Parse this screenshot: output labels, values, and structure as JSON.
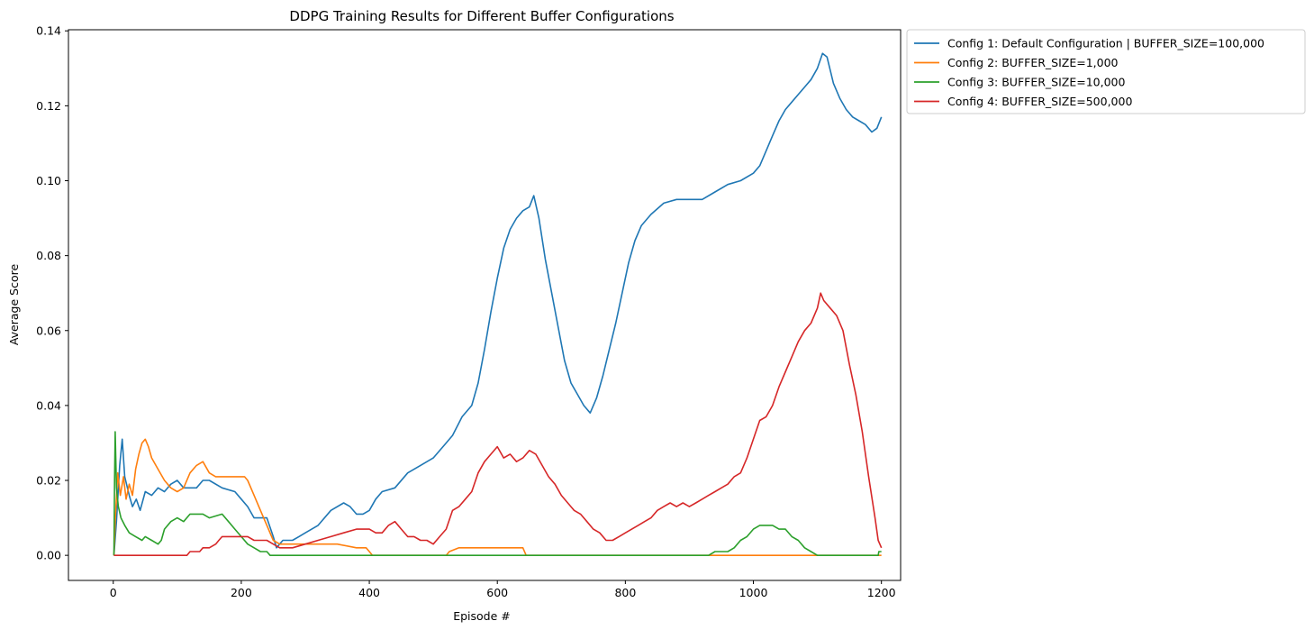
{
  "chart_data": {
    "type": "line",
    "title": "DDPG Training Results for Different Buffer Configurations",
    "xlabel": "Episode #",
    "ylabel": "Average Score",
    "xlim": [
      -70,
      1230
    ],
    "ylim": [
      -0.0067,
      0.1403
    ],
    "xticks": [
      0,
      200,
      400,
      600,
      800,
      1000,
      1200
    ],
    "xtick_labels": [
      "0",
      "200",
      "400",
      "600",
      "800",
      "1000",
      "1200"
    ],
    "yticks": [
      0.0,
      0.02,
      0.04,
      0.06,
      0.08,
      0.1,
      0.12,
      0.14
    ],
    "ytick_labels": [
      "0.00",
      "0.02",
      "0.04",
      "0.06",
      "0.08",
      "0.10",
      "0.12",
      "0.14"
    ],
    "grid": false,
    "legend_position": "outside-top-right",
    "series": [
      {
        "name": "Config 1: Default Configuration | BUFFER_SIZE=100,000",
        "color": "#1f77b4",
        "points": [
          [
            1,
            0
          ],
          [
            5,
            0.009
          ],
          [
            10,
            0.024
          ],
          [
            14,
            0.031
          ],
          [
            18,
            0.021
          ],
          [
            25,
            0.016
          ],
          [
            30,
            0.013
          ],
          [
            36,
            0.015
          ],
          [
            42,
            0.012
          ],
          [
            50,
            0.017
          ],
          [
            60,
            0.016
          ],
          [
            70,
            0.018
          ],
          [
            80,
            0.017
          ],
          [
            90,
            0.019
          ],
          [
            100,
            0.02
          ],
          [
            110,
            0.018
          ],
          [
            130,
            0.018
          ],
          [
            140,
            0.02
          ],
          [
            150,
            0.02
          ],
          [
            170,
            0.018
          ],
          [
            190,
            0.017
          ],
          [
            200,
            0.015
          ],
          [
            210,
            0.013
          ],
          [
            220,
            0.01
          ],
          [
            240,
            0.01
          ],
          [
            250,
            0.005
          ],
          [
            255,
            0.002
          ],
          [
            265,
            0.004
          ],
          [
            280,
            0.004
          ],
          [
            290,
            0.005
          ],
          [
            300,
            0.006
          ],
          [
            320,
            0.008
          ],
          [
            340,
            0.012
          ],
          [
            360,
            0.014
          ],
          [
            370,
            0.013
          ],
          [
            380,
            0.011
          ],
          [
            390,
            0.011
          ],
          [
            400,
            0.012
          ],
          [
            410,
            0.015
          ],
          [
            420,
            0.017
          ],
          [
            440,
            0.018
          ],
          [
            460,
            0.022
          ],
          [
            480,
            0.024
          ],
          [
            500,
            0.026
          ],
          [
            520,
            0.03
          ],
          [
            530,
            0.032
          ],
          [
            545,
            0.037
          ],
          [
            560,
            0.04
          ],
          [
            570,
            0.046
          ],
          [
            580,
            0.055
          ],
          [
            590,
            0.065
          ],
          [
            600,
            0.074
          ],
          [
            610,
            0.082
          ],
          [
            620,
            0.087
          ],
          [
            630,
            0.09
          ],
          [
            640,
            0.092
          ],
          [
            650,
            0.093
          ],
          [
            657,
            0.096
          ],
          [
            665,
            0.09
          ],
          [
            675,
            0.079
          ],
          [
            685,
            0.07
          ],
          [
            695,
            0.061
          ],
          [
            705,
            0.052
          ],
          [
            715,
            0.046
          ],
          [
            725,
            0.043
          ],
          [
            735,
            0.04
          ],
          [
            745,
            0.038
          ],
          [
            755,
            0.042
          ],
          [
            765,
            0.048
          ],
          [
            775,
            0.055
          ],
          [
            785,
            0.062
          ],
          [
            795,
            0.07
          ],
          [
            805,
            0.078
          ],
          [
            815,
            0.084
          ],
          [
            825,
            0.088
          ],
          [
            840,
            0.091
          ],
          [
            860,
            0.094
          ],
          [
            880,
            0.095
          ],
          [
            900,
            0.095
          ],
          [
            920,
            0.095
          ],
          [
            940,
            0.097
          ],
          [
            960,
            0.099
          ],
          [
            980,
            0.1
          ],
          [
            1000,
            0.102
          ],
          [
            1010,
            0.104
          ],
          [
            1020,
            0.108
          ],
          [
            1030,
            0.112
          ],
          [
            1040,
            0.116
          ],
          [
            1050,
            0.119
          ],
          [
            1060,
            0.121
          ],
          [
            1070,
            0.123
          ],
          [
            1080,
            0.125
          ],
          [
            1090,
            0.127
          ],
          [
            1100,
            0.13
          ],
          [
            1108,
            0.134
          ],
          [
            1115,
            0.133
          ],
          [
            1125,
            0.126
          ],
          [
            1135,
            0.122
          ],
          [
            1145,
            0.119
          ],
          [
            1155,
            0.117
          ],
          [
            1165,
            0.116
          ],
          [
            1175,
            0.115
          ],
          [
            1185,
            0.113
          ],
          [
            1193,
            0.114
          ],
          [
            1200,
            0.117
          ]
        ]
      },
      {
        "name": "Config 2: BUFFER_SIZE=1,000",
        "color": "#ff7f0e",
        "points": [
          [
            1,
            0
          ],
          [
            3,
            0.009
          ],
          [
            7,
            0.022
          ],
          [
            11,
            0.016
          ],
          [
            16,
            0.021
          ],
          [
            20,
            0.015
          ],
          [
            25,
            0.019
          ],
          [
            30,
            0.016
          ],
          [
            35,
            0.023
          ],
          [
            40,
            0.027
          ],
          [
            45,
            0.03
          ],
          [
            50,
            0.031
          ],
          [
            55,
            0.029
          ],
          [
            60,
            0.026
          ],
          [
            70,
            0.023
          ],
          [
            80,
            0.02
          ],
          [
            90,
            0.018
          ],
          [
            100,
            0.017
          ],
          [
            110,
            0.018
          ],
          [
            120,
            0.022
          ],
          [
            130,
            0.024
          ],
          [
            140,
            0.025
          ],
          [
            150,
            0.022
          ],
          [
            160,
            0.021
          ],
          [
            170,
            0.021
          ],
          [
            180,
            0.021
          ],
          [
            190,
            0.021
          ],
          [
            200,
            0.021
          ],
          [
            205,
            0.021
          ],
          [
            210,
            0.02
          ],
          [
            220,
            0.016
          ],
          [
            230,
            0.012
          ],
          [
            240,
            0.008
          ],
          [
            250,
            0.004
          ],
          [
            260,
            0.003
          ],
          [
            300,
            0.003
          ],
          [
            350,
            0.003
          ],
          [
            380,
            0.002
          ],
          [
            395,
            0.002
          ],
          [
            400,
            0.001
          ],
          [
            405,
            0
          ],
          [
            520,
            0
          ],
          [
            525,
            0.001
          ],
          [
            540,
            0.002
          ],
          [
            640,
            0.002
          ],
          [
            645,
            0
          ],
          [
            1200,
            0
          ]
        ]
      },
      {
        "name": "Config 3: BUFFER_SIZE=10,000",
        "color": "#2ca02c",
        "points": [
          [
            1,
            0
          ],
          [
            2,
            0.02
          ],
          [
            3,
            0.033
          ],
          [
            5,
            0.018
          ],
          [
            8,
            0.013
          ],
          [
            12,
            0.01
          ],
          [
            18,
            0.008
          ],
          [
            25,
            0.006
          ],
          [
            35,
            0.005
          ],
          [
            45,
            0.004
          ],
          [
            50,
            0.005
          ],
          [
            60,
            0.004
          ],
          [
            70,
            0.003
          ],
          [
            75,
            0.004
          ],
          [
            80,
            0.007
          ],
          [
            90,
            0.009
          ],
          [
            100,
            0.01
          ],
          [
            110,
            0.009
          ],
          [
            120,
            0.011
          ],
          [
            140,
            0.011
          ],
          [
            150,
            0.01
          ],
          [
            170,
            0.011
          ],
          [
            180,
            0.009
          ],
          [
            190,
            0.007
          ],
          [
            200,
            0.005
          ],
          [
            210,
            0.003
          ],
          [
            220,
            0.002
          ],
          [
            230,
            0.001
          ],
          [
            240,
            0.001
          ],
          [
            245,
            0
          ],
          [
            930,
            0
          ],
          [
            940,
            0.001
          ],
          [
            960,
            0.001
          ],
          [
            970,
            0.002
          ],
          [
            980,
            0.004
          ],
          [
            990,
            0.005
          ],
          [
            1000,
            0.007
          ],
          [
            1010,
            0.008
          ],
          [
            1030,
            0.008
          ],
          [
            1040,
            0.007
          ],
          [
            1050,
            0.007
          ],
          [
            1060,
            0.005
          ],
          [
            1070,
            0.004
          ],
          [
            1080,
            0.002
          ],
          [
            1090,
            0.001
          ],
          [
            1100,
            0
          ],
          [
            1195,
            0
          ],
          [
            1196,
            0.001
          ],
          [
            1200,
            0.001
          ]
        ]
      },
      {
        "name": "Config 4: BUFFER_SIZE=500,000",
        "color": "#d62728",
        "points": [
          [
            1,
            0
          ],
          [
            115,
            0
          ],
          [
            120,
            0.001
          ],
          [
            135,
            0.001
          ],
          [
            140,
            0.002
          ],
          [
            150,
            0.002
          ],
          [
            160,
            0.003
          ],
          [
            165,
            0.004
          ],
          [
            170,
            0.005
          ],
          [
            190,
            0.005
          ],
          [
            210,
            0.005
          ],
          [
            220,
            0.004
          ],
          [
            240,
            0.004
          ],
          [
            250,
            0.003
          ],
          [
            260,
            0.002
          ],
          [
            280,
            0.002
          ],
          [
            300,
            0.003
          ],
          [
            320,
            0.004
          ],
          [
            340,
            0.005
          ],
          [
            360,
            0.006
          ],
          [
            380,
            0.007
          ],
          [
            400,
            0.007
          ],
          [
            410,
            0.006
          ],
          [
            420,
            0.006
          ],
          [
            430,
            0.008
          ],
          [
            440,
            0.009
          ],
          [
            450,
            0.007
          ],
          [
            460,
            0.005
          ],
          [
            470,
            0.005
          ],
          [
            480,
            0.004
          ],
          [
            490,
            0.004
          ],
          [
            500,
            0.003
          ],
          [
            510,
            0.005
          ],
          [
            520,
            0.007
          ],
          [
            530,
            0.012
          ],
          [
            540,
            0.013
          ],
          [
            550,
            0.015
          ],
          [
            560,
            0.017
          ],
          [
            570,
            0.022
          ],
          [
            580,
            0.025
          ],
          [
            590,
            0.027
          ],
          [
            600,
            0.029
          ],
          [
            610,
            0.026
          ],
          [
            620,
            0.027
          ],
          [
            630,
            0.025
          ],
          [
            640,
            0.026
          ],
          [
            650,
            0.028
          ],
          [
            660,
            0.027
          ],
          [
            670,
            0.024
          ],
          [
            680,
            0.021
          ],
          [
            690,
            0.019
          ],
          [
            700,
            0.016
          ],
          [
            710,
            0.014
          ],
          [
            720,
            0.012
          ],
          [
            730,
            0.011
          ],
          [
            740,
            0.009
          ],
          [
            750,
            0.007
          ],
          [
            760,
            0.006
          ],
          [
            770,
            0.004
          ],
          [
            780,
            0.004
          ],
          [
            790,
            0.005
          ],
          [
            800,
            0.006
          ],
          [
            810,
            0.007
          ],
          [
            820,
            0.008
          ],
          [
            830,
            0.009
          ],
          [
            840,
            0.01
          ],
          [
            850,
            0.012
          ],
          [
            860,
            0.013
          ],
          [
            870,
            0.014
          ],
          [
            880,
            0.013
          ],
          [
            890,
            0.014
          ],
          [
            900,
            0.013
          ],
          [
            910,
            0.014
          ],
          [
            920,
            0.015
          ],
          [
            930,
            0.016
          ],
          [
            940,
            0.017
          ],
          [
            950,
            0.018
          ],
          [
            960,
            0.019
          ],
          [
            970,
            0.021
          ],
          [
            980,
            0.022
          ],
          [
            990,
            0.026
          ],
          [
            1000,
            0.031
          ],
          [
            1010,
            0.036
          ],
          [
            1020,
            0.037
          ],
          [
            1030,
            0.04
          ],
          [
            1040,
            0.045
          ],
          [
            1050,
            0.049
          ],
          [
            1060,
            0.053
          ],
          [
            1070,
            0.057
          ],
          [
            1080,
            0.06
          ],
          [
            1090,
            0.062
          ],
          [
            1100,
            0.066
          ],
          [
            1105,
            0.07
          ],
          [
            1110,
            0.068
          ],
          [
            1120,
            0.066
          ],
          [
            1130,
            0.064
          ],
          [
            1140,
            0.06
          ],
          [
            1150,
            0.051
          ],
          [
            1160,
            0.043
          ],
          [
            1170,
            0.033
          ],
          [
            1180,
            0.021
          ],
          [
            1190,
            0.01
          ],
          [
            1195,
            0.004
          ],
          [
            1200,
            0.002
          ]
        ]
      }
    ]
  }
}
